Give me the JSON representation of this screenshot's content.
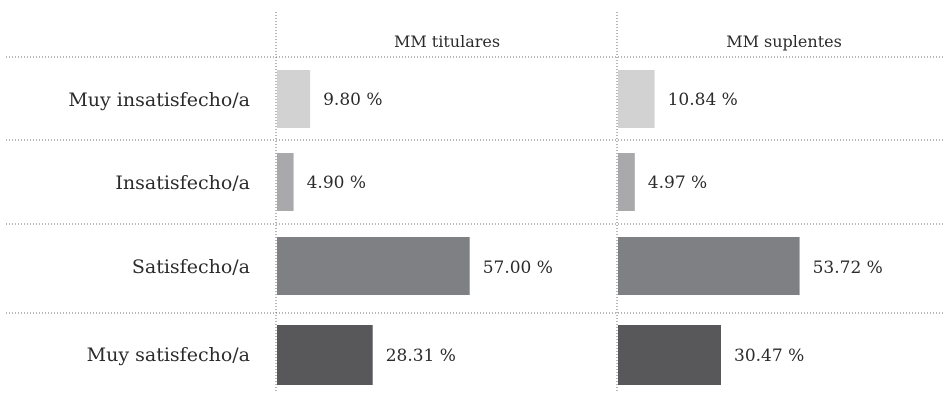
{
  "chart_data": {
    "type": "bar",
    "orientation": "horizontal",
    "categories": [
      "Muy insatisfecho/a",
      "Insatisfecho/a",
      "Satisfecho/a",
      "Muy satisfecho/a"
    ],
    "series": [
      {
        "name": "MM titulares",
        "values": [
          9.8,
          4.9,
          57.0,
          28.31
        ],
        "labels": [
          "9.80 %",
          "4.90 %",
          "57.00 %",
          "28.31 %"
        ]
      },
      {
        "name": "MM suplentes",
        "values": [
          10.84,
          4.97,
          53.72,
          30.47
        ],
        "labels": [
          "10.84 %",
          "4.97 %",
          "53.72 %",
          "30.47 %"
        ]
      }
    ],
    "category_colors": [
      "#d2d2d2",
      "#a9a9ab",
      "#7f8084",
      "#58585a"
    ],
    "grid": false,
    "legend": "none"
  }
}
